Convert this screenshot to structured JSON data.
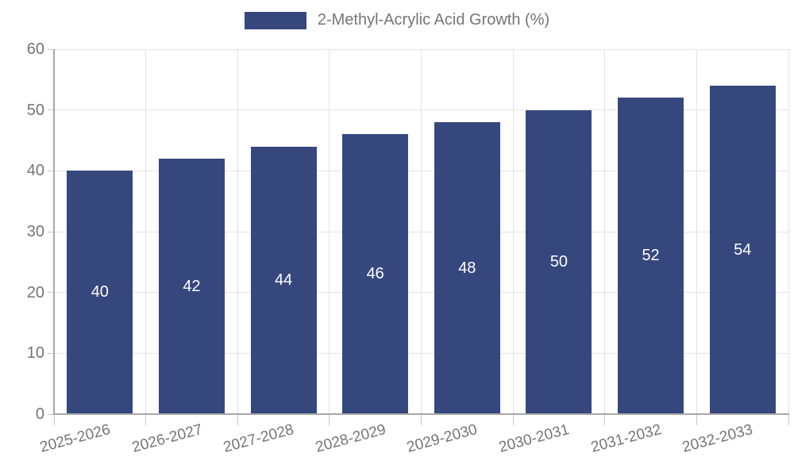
{
  "legend": {
    "label": "2-Methyl-Acrylic Acid Growth (%)"
  },
  "colors": {
    "bar": "#36477E",
    "grid": "#E3E3E3",
    "axis": "#A8A8A8",
    "tick": "#C9C9C9",
    "text": "#757575",
    "bar_label_text": "#FFFFFF",
    "background": "#FFFFFF"
  },
  "chart_data": {
    "type": "bar",
    "title": "2-Methyl-Acrylic Acid Growth (%)",
    "categories": [
      "2025-2026",
      "2026-2027",
      "2027-2028",
      "2028-2029",
      "2029-2030",
      "2030-2031",
      "2031-2032",
      "2032-2033"
    ],
    "values": [
      40,
      42,
      44,
      46,
      48,
      50,
      52,
      54
    ],
    "xlabel": "",
    "ylabel": "",
    "ylim": [
      0,
      60
    ],
    "yticks": [
      0,
      10,
      20,
      30,
      40,
      50,
      60
    ],
    "grid": true,
    "legend_position": "top-center",
    "x_label_rotation_deg": -15,
    "value_labels": "inside-center"
  }
}
